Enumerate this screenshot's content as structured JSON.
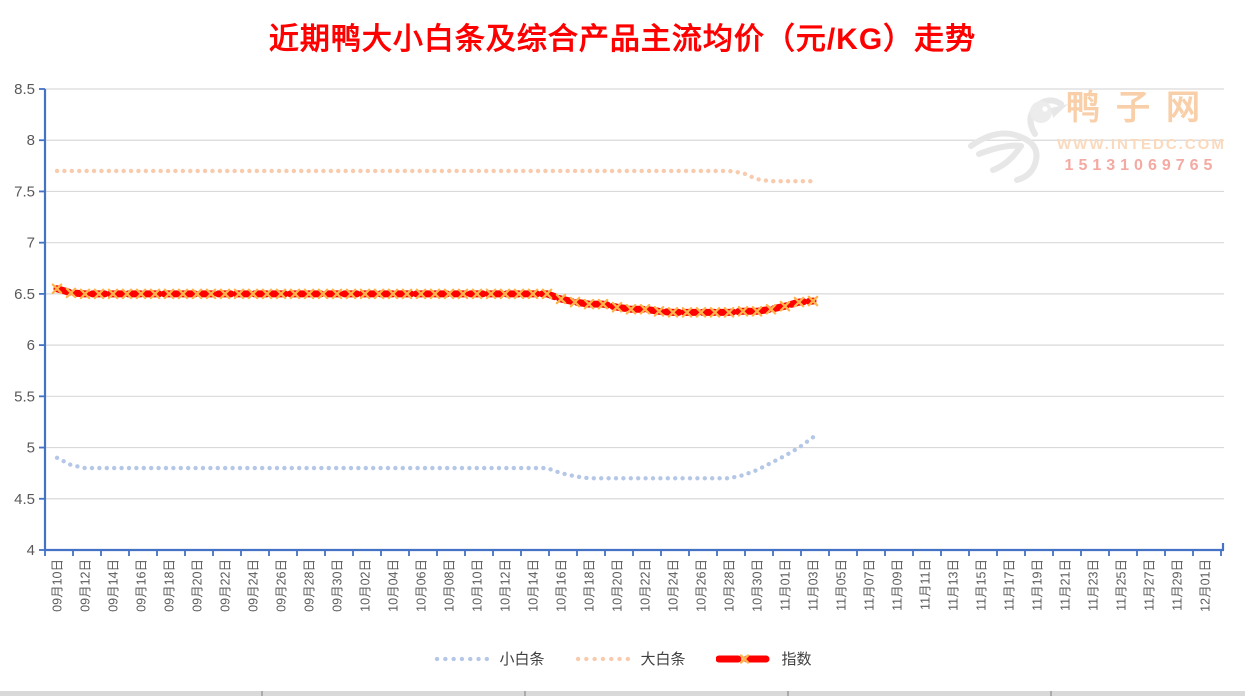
{
  "title": "近期鸭大小白条及综合产品主流均价（元/KG）走势",
  "watermark": {
    "brand": "鸭子网",
    "url": "WWW.INTEDC.COM",
    "phone": "15131069765"
  },
  "colors": {
    "title": "#fe0000",
    "axis": "#4472c4",
    "gridline": "#d9d9d9",
    "tick_label": "#595959",
    "legend_text": "#404040"
  },
  "chart_data": {
    "type": "line",
    "title": "近期鸭大小白条及综合产品主流均价（元/KG）走势",
    "ylabel": "",
    "xlabel": "",
    "ylim": [
      4,
      8.5
    ],
    "y_step": 0.5,
    "grid": true,
    "legend_position": "bottom",
    "x_categories": [
      "09月10日",
      "09月12日",
      "09月14日",
      "09月16日",
      "09月18日",
      "09月20日",
      "09月22日",
      "09月24日",
      "09月26日",
      "09月28日",
      "09月30日",
      "10月02日",
      "10月04日",
      "10月06日",
      "10月08日",
      "10月10日",
      "10月12日",
      "10月14日",
      "10月16日",
      "10月18日",
      "10月20日",
      "10月22日",
      "10月24日",
      "10月26日",
      "10月28日",
      "10月30日",
      "11月01日",
      "11月03日",
      "11月05日",
      "11月07日",
      "11月09日",
      "11月11日",
      "11月13日",
      "11月15日",
      "11月17日",
      "11月19日",
      "11月21日",
      "11月23日",
      "11月25日",
      "11月27日",
      "11月29日",
      "12月01日"
    ],
    "x_tick_interval_days": 2,
    "values_interval_days": 1,
    "series": [
      {
        "name": "小白条",
        "color": "#b4c7e7",
        "style": "dotted",
        "values": [
          4.9,
          4.83,
          4.8,
          4.8,
          4.8,
          4.8,
          4.8,
          4.8,
          4.8,
          4.8,
          4.8,
          4.8,
          4.8,
          4.8,
          4.8,
          4.8,
          4.8,
          4.8,
          4.8,
          4.8,
          4.8,
          4.8,
          4.8,
          4.8,
          4.8,
          4.8,
          4.8,
          4.8,
          4.8,
          4.8,
          4.8,
          4.8,
          4.8,
          4.8,
          4.8,
          4.8,
          4.75,
          4.72,
          4.7,
          4.7,
          4.7,
          4.7,
          4.7,
          4.7,
          4.7,
          4.7,
          4.7,
          4.7,
          4.7,
          4.73,
          4.78,
          4.85,
          4.92,
          5.0,
          5.1
        ]
      },
      {
        "name": "大白条",
        "color": "#f8cbad",
        "style": "dotted",
        "values": [
          7.7,
          7.7,
          7.7,
          7.7,
          7.7,
          7.7,
          7.7,
          7.7,
          7.7,
          7.7,
          7.7,
          7.7,
          7.7,
          7.7,
          7.7,
          7.7,
          7.7,
          7.7,
          7.7,
          7.7,
          7.7,
          7.7,
          7.7,
          7.7,
          7.7,
          7.7,
          7.7,
          7.7,
          7.7,
          7.7,
          7.7,
          7.7,
          7.7,
          7.7,
          7.7,
          7.7,
          7.7,
          7.7,
          7.7,
          7.7,
          7.7,
          7.7,
          7.7,
          7.7,
          7.7,
          7.7,
          7.7,
          7.7,
          7.7,
          7.68,
          7.62,
          7.6,
          7.6,
          7.6,
          7.6
        ]
      },
      {
        "name": "指数",
        "color": "#fe0000",
        "marker_color": "#ffb54d",
        "style": "thick-dash-x",
        "values": [
          6.55,
          6.51,
          6.5,
          6.5,
          6.5,
          6.5,
          6.5,
          6.5,
          6.5,
          6.5,
          6.5,
          6.5,
          6.5,
          6.5,
          6.5,
          6.5,
          6.5,
          6.5,
          6.5,
          6.5,
          6.5,
          6.5,
          6.5,
          6.5,
          6.5,
          6.5,
          6.5,
          6.5,
          6.5,
          6.5,
          6.5,
          6.5,
          6.5,
          6.5,
          6.5,
          6.5,
          6.45,
          6.42,
          6.4,
          6.4,
          6.37,
          6.35,
          6.35,
          6.33,
          6.32,
          6.32,
          6.32,
          6.32,
          6.32,
          6.33,
          6.33,
          6.35,
          6.38,
          6.42,
          6.43
        ]
      }
    ]
  }
}
